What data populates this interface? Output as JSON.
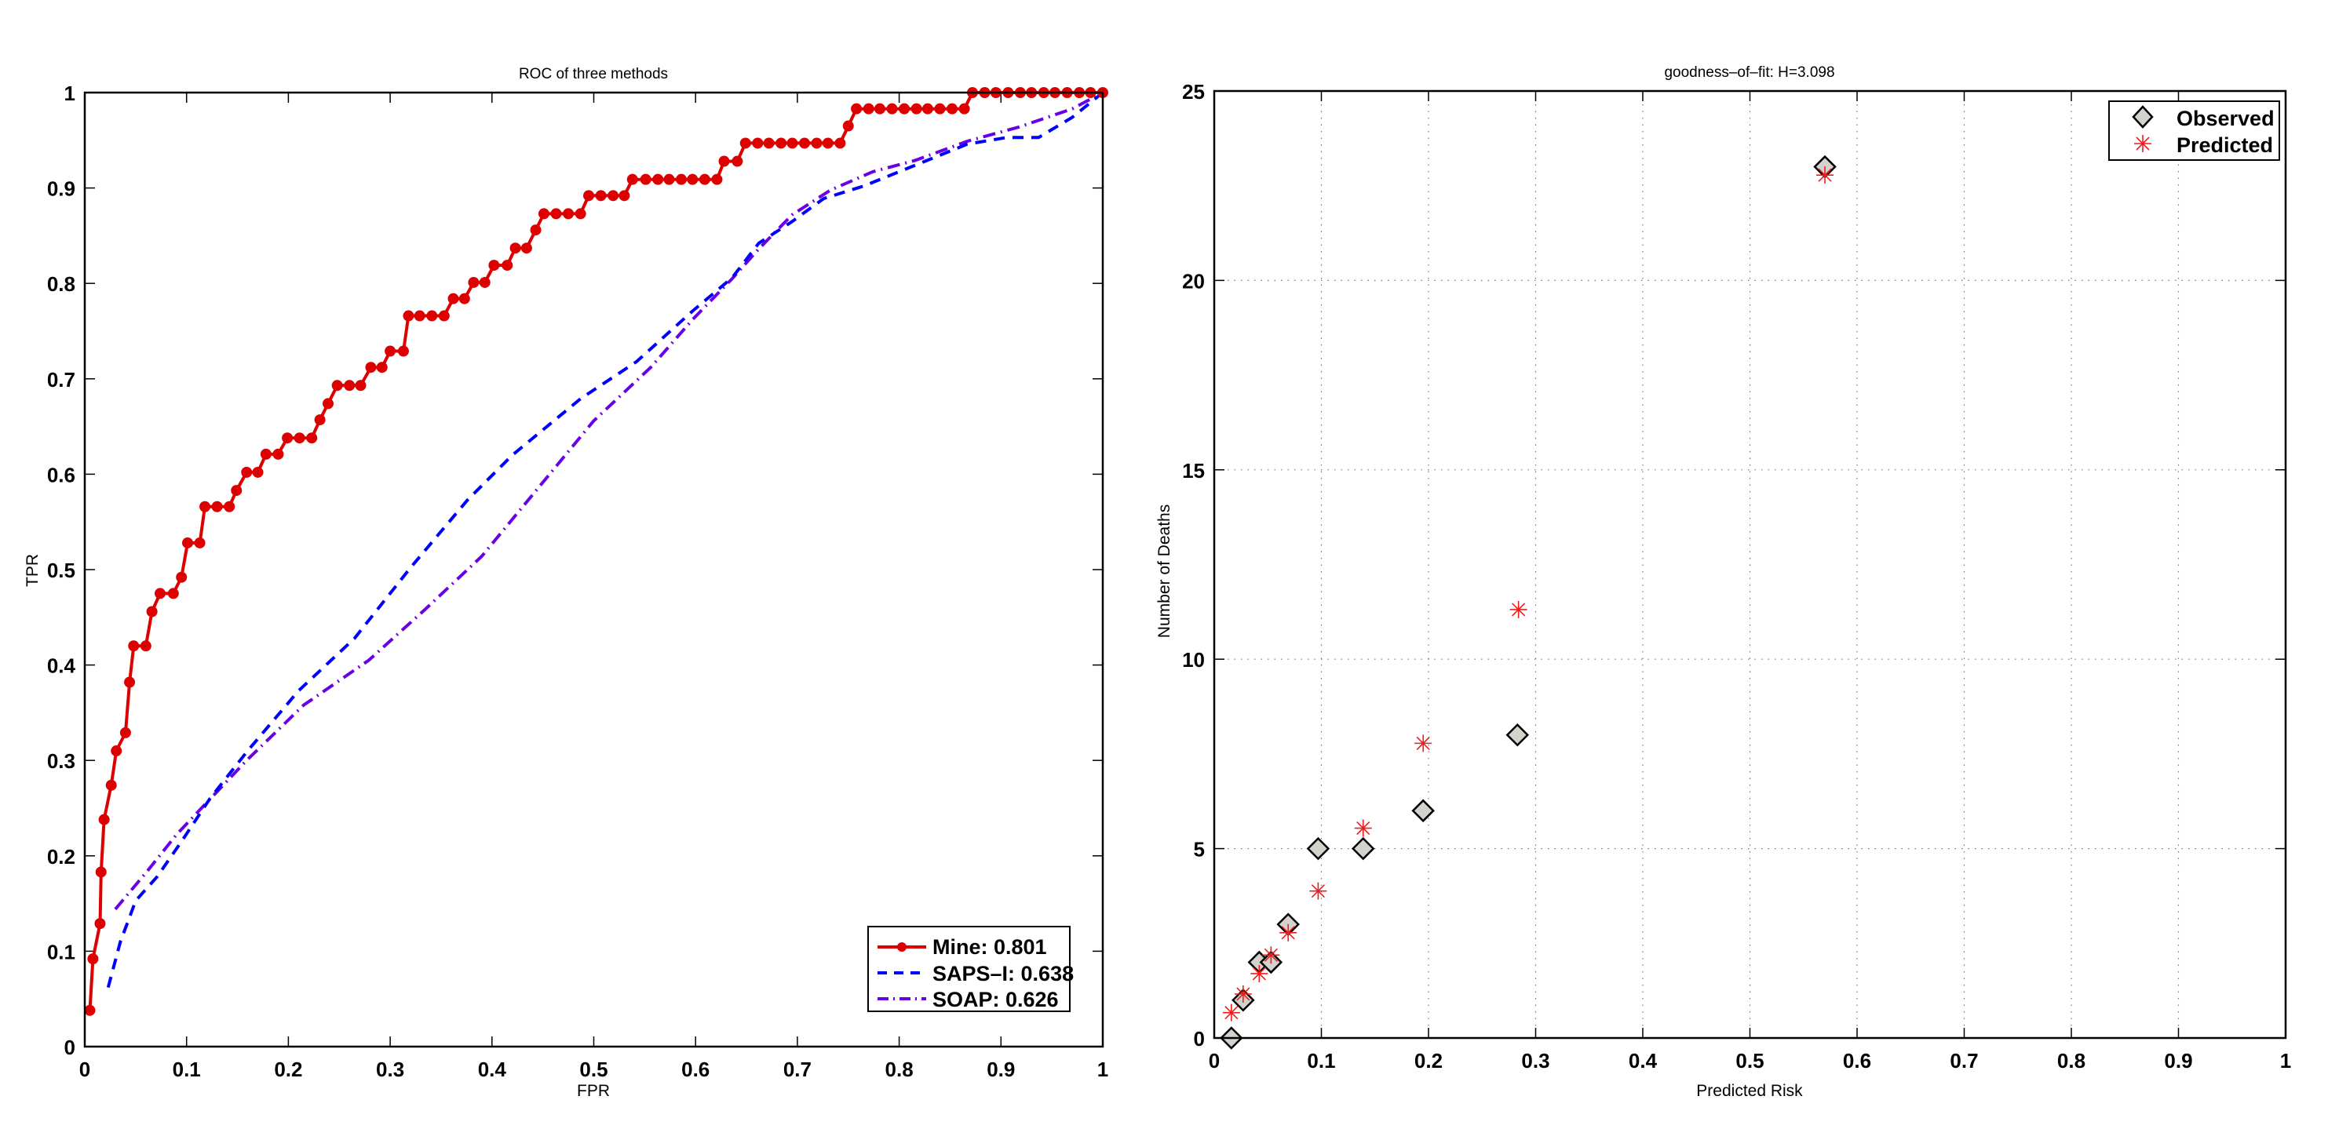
{
  "chart_data": [
    {
      "type": "line",
      "title": "ROC of three methods",
      "xlabel": "FPR",
      "ylabel": "TPR",
      "xlim": [
        0,
        1
      ],
      "ylim": [
        0,
        1
      ],
      "xticks": [
        "0",
        "0.1",
        "0.2",
        "0.3",
        "0.4",
        "0.5",
        "0.6",
        "0.7",
        "0.8",
        "0.9",
        "1"
      ],
      "yticks": [
        "0",
        "0.1",
        "0.2",
        "0.3",
        "0.4",
        "0.5",
        "0.6",
        "0.7",
        "0.8",
        "0.9",
        "1"
      ],
      "grid": false,
      "legend_position": "bottom-right",
      "series": [
        {
          "name": "Mine: 0.801",
          "color": "#dd0000",
          "style": "solid-with-circle-markers",
          "x": [
            0.005,
            0.008,
            0.015,
            0.016,
            0.019,
            0.026,
            0.031,
            0.04,
            0.044,
            0.048,
            0.06,
            0.066,
            0.074,
            0.087,
            0.095,
            0.101,
            0.113,
            0.118,
            0.13,
            0.142,
            0.149,
            0.159,
            0.17,
            0.178,
            0.19,
            0.199,
            0.211,
            0.223,
            0.231,
            0.239,
            0.248,
            0.26,
            0.271,
            0.281,
            0.292,
            0.3,
            0.313,
            0.318,
            0.329,
            0.341,
            0.353,
            0.362,
            0.373,
            0.382,
            0.393,
            0.402,
            0.415,
            0.423,
            0.434,
            0.443,
            0.451,
            0.463,
            0.475,
            0.487,
            0.495,
            0.507,
            0.519,
            0.53,
            0.538,
            0.551,
            0.563,
            0.574,
            0.586,
            0.597,
            0.609,
            0.621,
            0.628,
            0.641,
            0.649,
            0.661,
            0.672,
            0.684,
            0.695,
            0.707,
            0.719,
            0.73,
            0.742,
            0.75,
            0.758,
            0.77,
            0.781,
            0.793,
            0.805,
            0.817,
            0.828,
            0.84,
            0.852,
            0.864,
            0.872,
            0.884,
            0.895,
            0.907,
            0.919,
            0.93,
            0.942,
            0.953,
            0.965,
            0.977,
            0.988,
            1.0
          ],
          "y": [
            0.038,
            0.092,
            0.129,
            0.183,
            0.238,
            0.274,
            0.31,
            0.329,
            0.382,
            0.42,
            0.42,
            0.456,
            0.475,
            0.475,
            0.492,
            0.528,
            0.528,
            0.566,
            0.566,
            0.566,
            0.583,
            0.602,
            0.602,
            0.621,
            0.621,
            0.638,
            0.638,
            0.638,
            0.657,
            0.674,
            0.693,
            0.693,
            0.693,
            0.712,
            0.712,
            0.729,
            0.729,
            0.766,
            0.766,
            0.766,
            0.766,
            0.784,
            0.784,
            0.801,
            0.801,
            0.819,
            0.819,
            0.837,
            0.837,
            0.856,
            0.873,
            0.873,
            0.873,
            0.873,
            0.892,
            0.892,
            0.892,
            0.892,
            0.909,
            0.909,
            0.909,
            0.909,
            0.909,
            0.909,
            0.909,
            0.909,
            0.928,
            0.928,
            0.947,
            0.947,
            0.947,
            0.947,
            0.947,
            0.947,
            0.947,
            0.947,
            0.947,
            0.965,
            0.983,
            0.983,
            0.983,
            0.983,
            0.983,
            0.983,
            0.983,
            0.983,
            0.983,
            0.983,
            1.0,
            1.0,
            1.0,
            1.0,
            1.0,
            1.0,
            1.0,
            1.0,
            1.0,
            1.0,
            1.0,
            1.0
          ]
        },
        {
          "name": "SAPS–I: 0.638",
          "color": "#0000ff",
          "style": "dashed",
          "x": [
            0.023,
            0.035,
            0.05,
            0.071,
            0.095,
            0.123,
            0.16,
            0.21,
            0.265,
            0.32,
            0.376,
            0.42,
            0.487,
            0.542,
            0.597,
            0.636,
            0.662,
            0.695,
            0.726,
            0.765,
            0.816,
            0.867,
            0.906,
            0.937,
            0.97,
            1.0
          ],
          "y": [
            0.062,
            0.11,
            0.153,
            0.178,
            0.215,
            0.26,
            0.31,
            0.373,
            0.428,
            0.502,
            0.573,
            0.62,
            0.679,
            0.718,
            0.771,
            0.806,
            0.842,
            0.865,
            0.889,
            0.902,
            0.924,
            0.946,
            0.953,
            0.953,
            0.974,
            1.0
          ]
        },
        {
          "name": "SOAP: 0.626",
          "color": "#6a00e6",
          "style": "dash-dot",
          "x": [
            0.03,
            0.063,
            0.09,
            0.112,
            0.159,
            0.215,
            0.279,
            0.334,
            0.39,
            0.445,
            0.5,
            0.556,
            0.597,
            0.636,
            0.662,
            0.695,
            0.733,
            0.774,
            0.816,
            0.867,
            0.918,
            0.97,
            1.0
          ],
          "y": [
            0.144,
            0.186,
            0.222,
            0.247,
            0.3,
            0.358,
            0.405,
            0.458,
            0.514,
            0.585,
            0.656,
            0.712,
            0.762,
            0.805,
            0.836,
            0.872,
            0.898,
            0.917,
            0.929,
            0.949,
            0.964,
            0.983,
            1.0
          ]
        }
      ]
    },
    {
      "type": "scatter",
      "title": "goodness–of–fit: H=3.098",
      "xlabel": "Predicted Risk",
      "ylabel": "Number of Deaths",
      "xlim": [
        0,
        1
      ],
      "ylim": [
        0,
        25
      ],
      "xticks": [
        "0",
        "0.1",
        "0.2",
        "0.3",
        "0.4",
        "0.5",
        "0.6",
        "0.7",
        "0.8",
        "0.9",
        "1"
      ],
      "yticks": [
        "0",
        "5",
        "10",
        "15",
        "20",
        "25"
      ],
      "grid": true,
      "legend_position": "top-right",
      "series": [
        {
          "name": "Observed",
          "marker": "diamond",
          "color": "#d4d2cc",
          "edge_color": "#000000",
          "x": [
            0.016,
            0.027,
            0.042,
            0.053,
            0.069,
            0.097,
            0.139,
            0.195,
            0.283,
            0.57
          ],
          "y": [
            0,
            1,
            2,
            2,
            3,
            5,
            5,
            6,
            8,
            23
          ]
        },
        {
          "name": "Predicted",
          "marker": "asterisk",
          "color": "#ee1c1c",
          "x": [
            0.016,
            0.027,
            0.042,
            0.053,
            0.069,
            0.097,
            0.139,
            0.195,
            0.284,
            0.57
          ],
          "y": [
            0.67,
            1.16,
            1.7,
            2.19,
            2.78,
            3.88,
            5.54,
            7.78,
            11.31,
            22.78
          ]
        }
      ]
    }
  ]
}
